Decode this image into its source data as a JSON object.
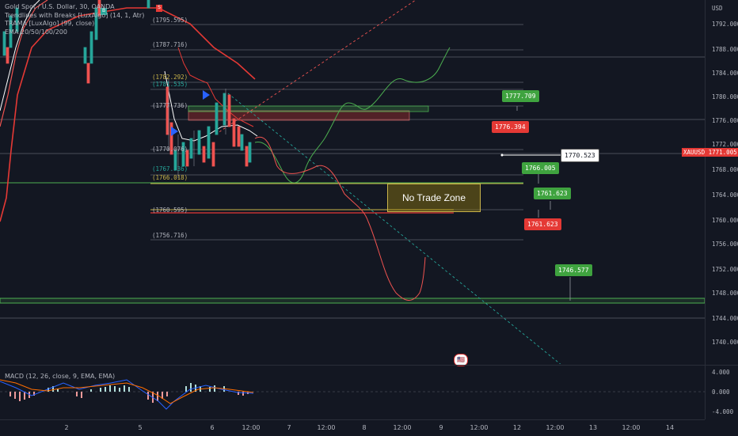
{
  "legend": {
    "title": "Gold Spot / U.S. Dollar, 30, OANDA",
    "indicators": [
      "Trendlines with Breaks [LuxAlgo] (14, 1, Atr)",
      "TRAMA [LuxAlgo] (99, close)",
      "EMA 20/50/100/200"
    ],
    "macd": "MACD (12, 26, close, 9, EMA, EMA)"
  },
  "price_axis": {
    "currency": "USD",
    "ticks": [
      "1792.000",
      "1788.000",
      "1784.000",
      "1780.000",
      "1776.000",
      "1772.000",
      "1768.000",
      "1764.000",
      "1760.000",
      "1756.000",
      "1752.000",
      "1748.000",
      "1744.000",
      "1740.000"
    ],
    "symbol": "XAUUSD",
    "last_price": "1771.005"
  },
  "macd_axis": {
    "ticks": [
      "4.000",
      "0.000",
      "-4.000"
    ]
  },
  "time_axis": {
    "labels": [
      "2",
      "5",
      "6",
      "12:00",
      "7",
      "12:00",
      "8",
      "12:00",
      "9",
      "12:00",
      "12",
      "12:00",
      "13",
      "12:00",
      "14"
    ]
  },
  "levels": {
    "l1": "(1795.595)",
    "l2": "(1787.716)",
    "l3": "(1782.292)",
    "l4": "(1781.535)",
    "l5": "(1777.736)",
    "l6": "(1770.076)",
    "l7": "(1767.736)",
    "l8": "(1766.018)",
    "l9": "(1760.595)",
    "l10": "(1756.716)"
  },
  "badges": {
    "b1": "1777.709",
    "b2": "1776.394",
    "b3": "1770.523",
    "b4": "1766.005",
    "b5": "1761.623",
    "b6": "1761.623",
    "b7": "1746.577"
  },
  "annotations": {
    "no_trade_zone": "No Trade Zone"
  },
  "markers": {
    "s": "S",
    "b": "B"
  },
  "colors": {
    "background": "#131722",
    "up": "#26a69a",
    "down": "#ef5350",
    "accent": "#2962ff"
  }
}
